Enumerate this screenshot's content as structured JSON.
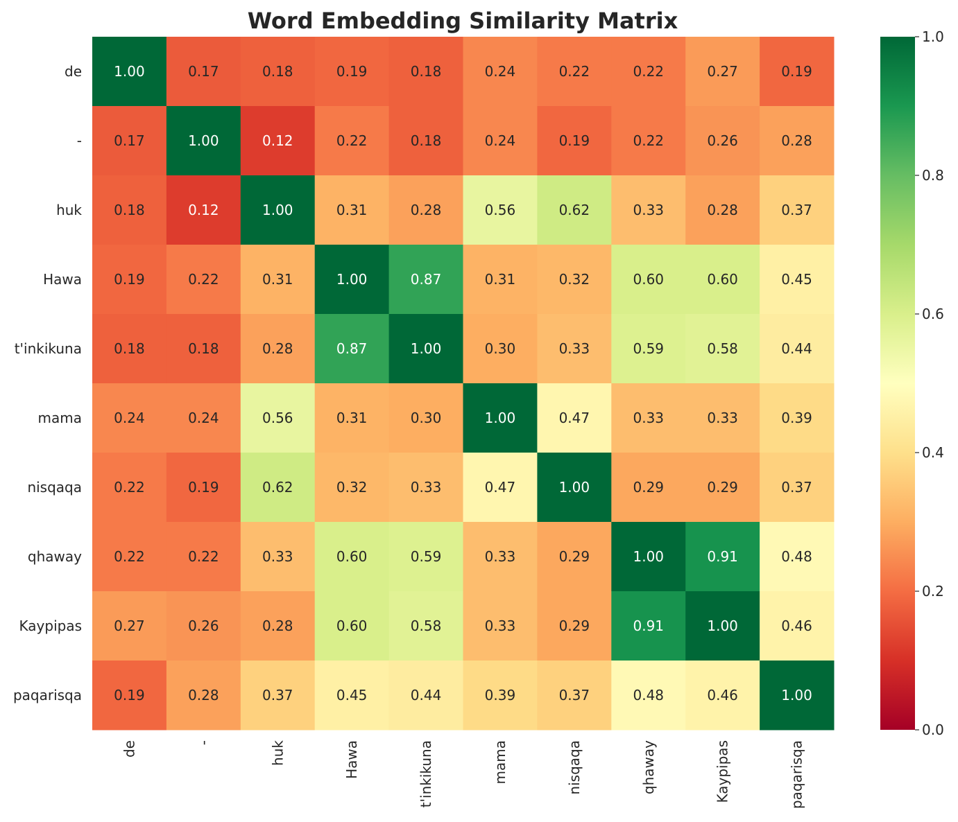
{
  "chart_data": {
    "type": "heatmap",
    "title": "Word Embedding Similarity Matrix",
    "x_categories": [
      "de",
      "-",
      "huk",
      "Hawa",
      "t'inkikuna",
      "mama",
      "nisqaqa",
      "qhaway",
      "Kaypipas",
      "paqarisqa"
    ],
    "y_categories": [
      "de",
      "-",
      "huk",
      "Hawa",
      "t'inkikuna",
      "mama",
      "nisqaqa",
      "qhaway",
      "Kaypipas",
      "paqarisqa"
    ],
    "values": [
      [
        1.0,
        0.17,
        0.18,
        0.19,
        0.18,
        0.24,
        0.22,
        0.22,
        0.27,
        0.19
      ],
      [
        0.17,
        1.0,
        0.12,
        0.22,
        0.18,
        0.24,
        0.19,
        0.22,
        0.26,
        0.28
      ],
      [
        0.18,
        0.12,
        1.0,
        0.31,
        0.28,
        0.56,
        0.62,
        0.33,
        0.28,
        0.37
      ],
      [
        0.19,
        0.22,
        0.31,
        1.0,
        0.87,
        0.31,
        0.32,
        0.6,
        0.6,
        0.45
      ],
      [
        0.18,
        0.18,
        0.28,
        0.87,
        1.0,
        0.3,
        0.33,
        0.59,
        0.58,
        0.44
      ],
      [
        0.24,
        0.24,
        0.56,
        0.31,
        0.3,
        1.0,
        0.47,
        0.33,
        0.33,
        0.39
      ],
      [
        0.22,
        0.19,
        0.62,
        0.32,
        0.33,
        0.47,
        1.0,
        0.29,
        0.29,
        0.37
      ],
      [
        0.22,
        0.22,
        0.33,
        0.6,
        0.59,
        0.33,
        0.29,
        1.0,
        0.91,
        0.48
      ],
      [
        0.27,
        0.26,
        0.28,
        0.6,
        0.58,
        0.33,
        0.29,
        0.91,
        1.0,
        0.46
      ],
      [
        0.19,
        0.28,
        0.37,
        0.45,
        0.44,
        0.39,
        0.37,
        0.48,
        0.46,
        1.0
      ]
    ],
    "value_format": "0.00",
    "colormap": "RdYlGn",
    "colorbar": {
      "range": [
        0.0,
        1.0
      ],
      "ticks": [
        "0.0",
        "0.2",
        "0.4",
        "0.6",
        "0.8",
        "1.0"
      ]
    },
    "colors": {
      "low": "#a50026",
      "mid": "#ffffbf",
      "high": "#006837"
    }
  }
}
